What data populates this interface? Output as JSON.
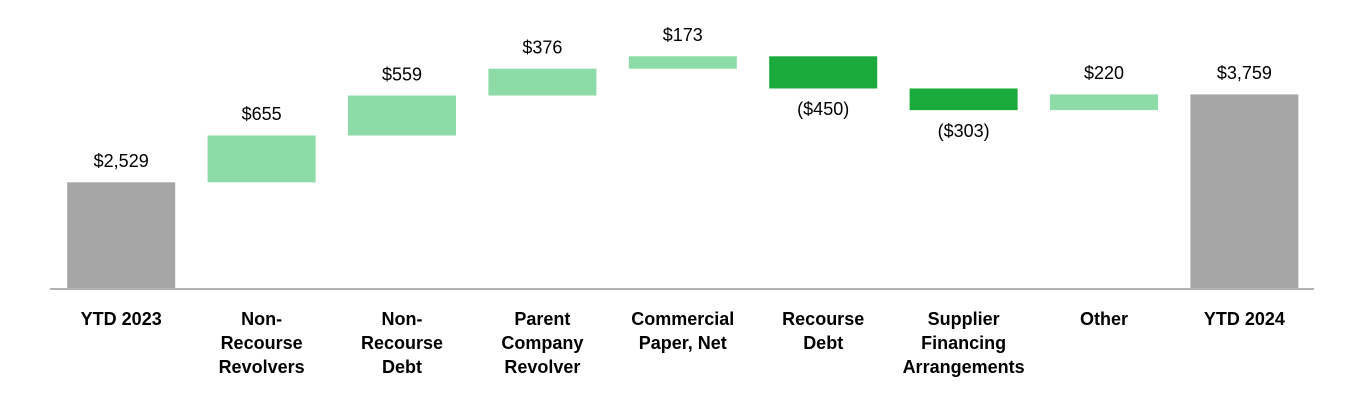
{
  "chart_data": {
    "type": "waterfall",
    "categories": [
      [
        "YTD 2023"
      ],
      [
        "Non-",
        "Recourse",
        "Revolvers"
      ],
      [
        "Non-",
        "Recourse",
        "Debt"
      ],
      [
        "Parent",
        "Company",
        "Revolver"
      ],
      [
        "Commercial",
        "Paper, Net"
      ],
      [
        "Recourse",
        "Debt"
      ],
      [
        "Supplier",
        "Financing",
        "Arrangements"
      ],
      [
        "Other"
      ],
      [
        "YTD 2024"
      ]
    ],
    "values": [
      2529,
      655,
      559,
      376,
      173,
      -450,
      -303,
      220,
      3759
    ],
    "value_labels": [
      "$2,529",
      "$655",
      "$559",
      "$376",
      "$173",
      "($450)",
      "($303)",
      "$220",
      "$3,759"
    ],
    "measures": [
      "absolute",
      "relative",
      "relative",
      "relative",
      "relative",
      "relative",
      "relative",
      "relative",
      "absolute"
    ],
    "colors": {
      "absolute": "#a6a6a6",
      "increase": "#8ddba6",
      "decrease": "#1aab3c"
    },
    "ylim": [
      1050,
      4800
    ]
  }
}
